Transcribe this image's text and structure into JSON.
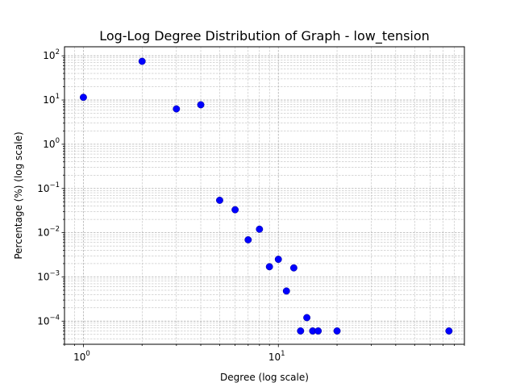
{
  "chart_data": {
    "type": "scatter",
    "title": "Log-Log Degree Distribution of Graph - low_tension",
    "xlabel": "Degree (log scale)",
    "ylabel": "Percentage (%) (log scale)",
    "x_scale": "log",
    "y_scale": "log",
    "xlim": [
      0.8,
      90
    ],
    "ylim": [
      3e-05,
      160
    ],
    "grid": true,
    "marker_color": "#0000ff",
    "x_ticks": [
      {
        "value": 1,
        "base": "10",
        "exp": "0"
      },
      {
        "value": 10,
        "base": "10",
        "exp": "1"
      }
    ],
    "y_ticks": [
      {
        "value": 100,
        "base": "10",
        "exp": "2"
      },
      {
        "value": 10,
        "base": "10",
        "exp": "1"
      },
      {
        "value": 1,
        "base": "10",
        "exp": "0"
      },
      {
        "value": 0.1,
        "base": "10",
        "exp": "−1"
      },
      {
        "value": 0.01,
        "base": "10",
        "exp": "−2"
      },
      {
        "value": 0.001,
        "base": "10",
        "exp": "−3"
      },
      {
        "value": 0.0001,
        "base": "10",
        "exp": "−4"
      }
    ],
    "points": [
      {
        "x": 1,
        "y": 11.5
      },
      {
        "x": 2,
        "y": 75
      },
      {
        "x": 3,
        "y": 6.3
      },
      {
        "x": 4,
        "y": 7.8
      },
      {
        "x": 5,
        "y": 0.054
      },
      {
        "x": 6,
        "y": 0.033
      },
      {
        "x": 7,
        "y": 0.0069
      },
      {
        "x": 8,
        "y": 0.012
      },
      {
        "x": 9,
        "y": 0.0017
      },
      {
        "x": 10,
        "y": 0.0025
      },
      {
        "x": 11,
        "y": 0.00048
      },
      {
        "x": 12,
        "y": 0.0016
      },
      {
        "x": 13,
        "y": 6e-05
      },
      {
        "x": 14,
        "y": 0.00012
      },
      {
        "x": 15,
        "y": 6e-05
      },
      {
        "x": 16,
        "y": 6e-05
      },
      {
        "x": 20,
        "y": 6e-05
      },
      {
        "x": 75,
        "y": 6e-05
      }
    ]
  }
}
